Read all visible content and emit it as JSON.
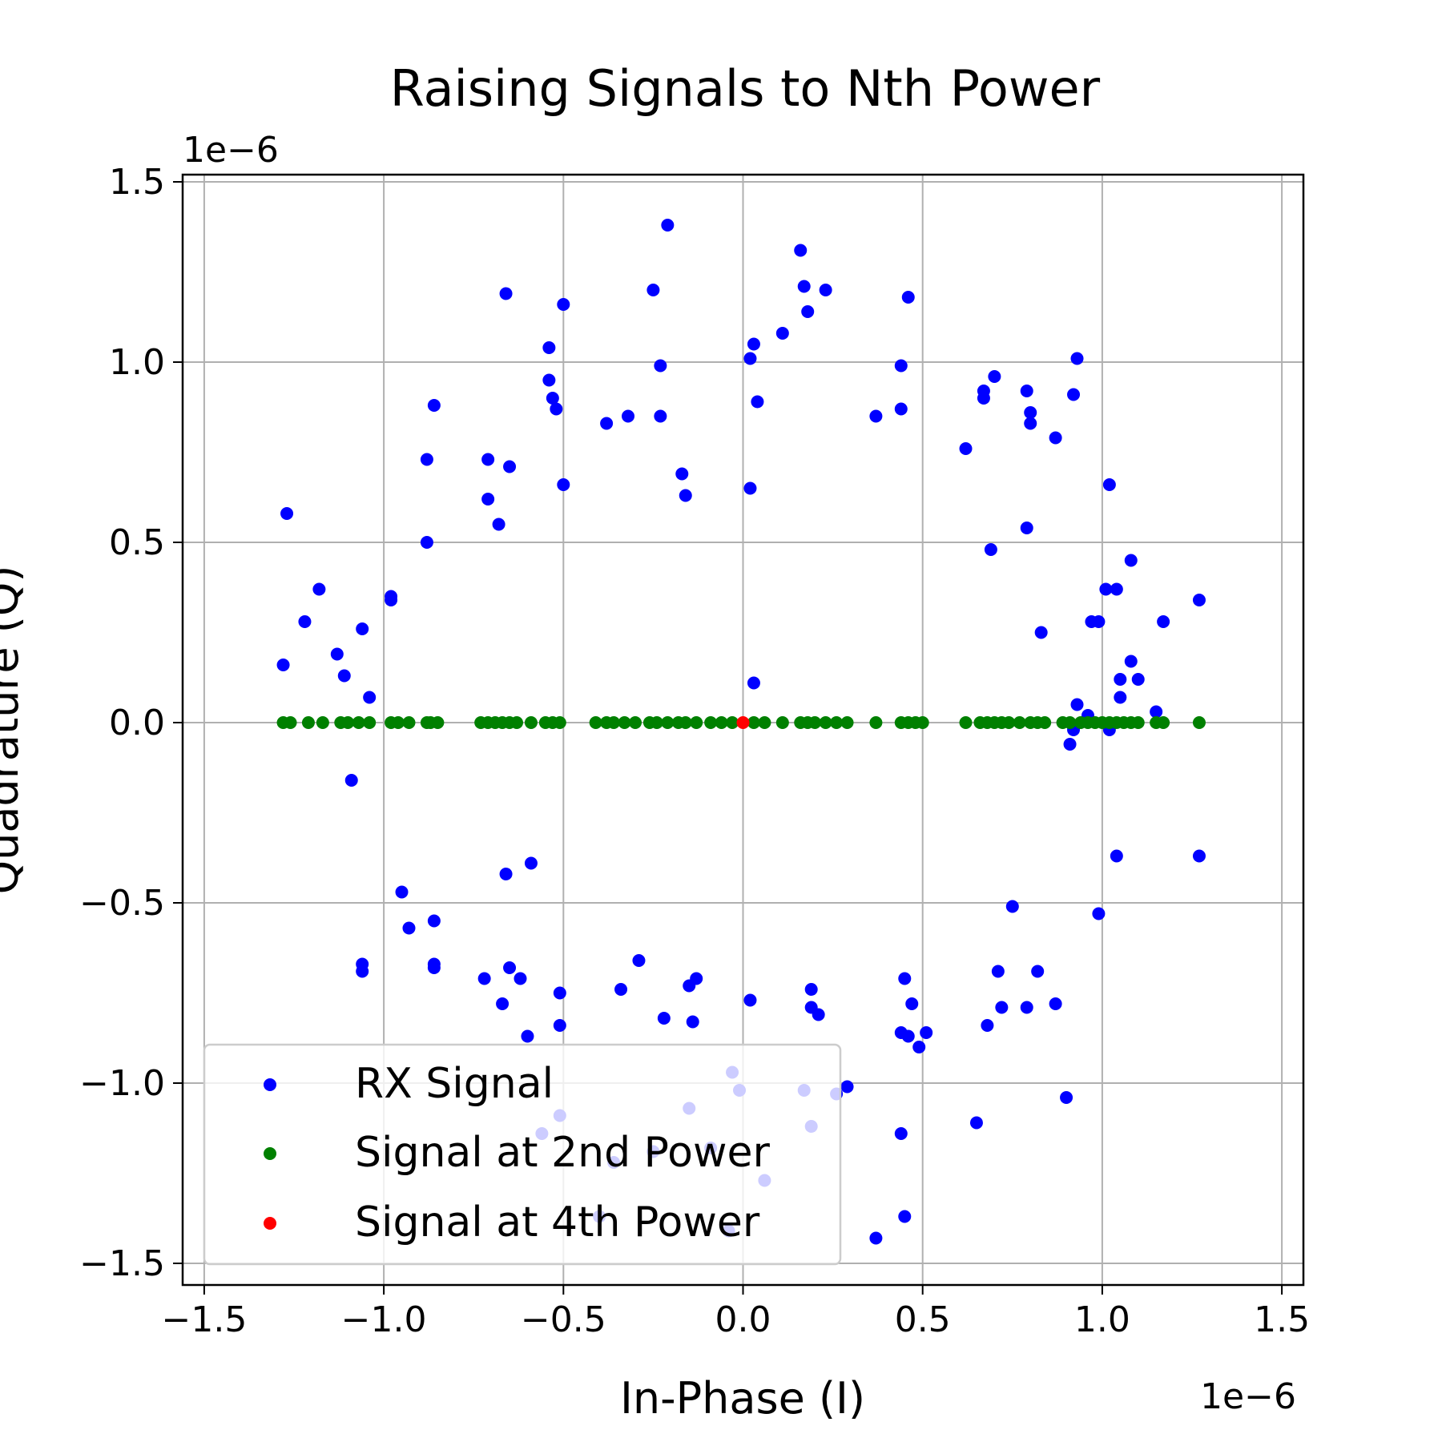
{
  "chart_data": {
    "type": "scatter",
    "title": "Raising Signals to Nth Power",
    "xlabel": "In-Phase (I)",
    "ylabel": "Quadrature (Q)",
    "x_offset_text": "1e−6",
    "y_offset_text": "1e−6",
    "xlim": [
      -1.56,
      1.56
    ],
    "ylim": [
      -1.56,
      1.52
    ],
    "x_ticks": [
      -1.5,
      -1.0,
      -0.5,
      0.0,
      0.5,
      1.0,
      1.5
    ],
    "y_ticks": [
      -1.5,
      -1.0,
      -0.5,
      0.0,
      0.5,
      1.0,
      1.5
    ],
    "x_tick_labels": [
      "−1.5",
      "−1.0",
      "−0.5",
      "0.0",
      "0.5",
      "1.0",
      "1.5"
    ],
    "y_tick_labels": [
      "−1.5",
      "−1.0",
      "−0.5",
      "0.0",
      "0.5",
      "1.0",
      "1.5"
    ],
    "grid": true,
    "legend_position": "lower-left",
    "series": [
      {
        "name": "RX Signal",
        "color": "#0000ff",
        "points": [
          [
            -1.27,
            0.58
          ],
          [
            -1.28,
            0.16
          ],
          [
            -1.22,
            0.28
          ],
          [
            -1.18,
            0.37
          ],
          [
            -1.13,
            0.19
          ],
          [
            -1.11,
            0.13
          ],
          [
            -1.06,
            0.26
          ],
          [
            -1.04,
            0.07
          ],
          [
            -1.09,
            -0.16
          ],
          [
            -0.98,
            0.35
          ],
          [
            -0.98,
            0.34
          ],
          [
            -0.88,
            0.5
          ],
          [
            -0.88,
            0.73
          ],
          [
            -0.86,
            0.88
          ],
          [
            -0.71,
            0.73
          ],
          [
            -0.71,
            0.62
          ],
          [
            -0.68,
            0.55
          ],
          [
            -0.66,
            1.19
          ],
          [
            -0.65,
            0.71
          ],
          [
            -0.54,
            1.04
          ],
          [
            -0.54,
            0.95
          ],
          [
            -0.53,
            0.9
          ],
          [
            -0.52,
            0.87
          ],
          [
            -0.5,
            1.16
          ],
          [
            -0.5,
            0.66
          ],
          [
            -0.38,
            0.83
          ],
          [
            -0.32,
            0.85
          ],
          [
            -0.25,
            1.2
          ],
          [
            -0.23,
            0.99
          ],
          [
            -0.23,
            0.85
          ],
          [
            -0.21,
            1.38
          ],
          [
            -0.17,
            0.69
          ],
          [
            -0.16,
            0.63
          ],
          [
            0.02,
            0.65
          ],
          [
            0.02,
            1.01
          ],
          [
            0.03,
            1.05
          ],
          [
            0.04,
            0.89
          ],
          [
            0.03,
            0.11
          ],
          [
            0.11,
            1.08
          ],
          [
            0.16,
            1.31
          ],
          [
            0.17,
            1.21
          ],
          [
            0.18,
            1.14
          ],
          [
            0.23,
            1.2
          ],
          [
            0.37,
            0.85
          ],
          [
            0.44,
            0.87
          ],
          [
            0.44,
            0.99
          ],
          [
            0.46,
            1.18
          ],
          [
            0.62,
            0.76
          ],
          [
            0.67,
            0.92
          ],
          [
            0.67,
            0.9
          ],
          [
            0.7,
            0.96
          ],
          [
            0.69,
            0.48
          ],
          [
            0.79,
            0.92
          ],
          [
            0.8,
            0.86
          ],
          [
            0.8,
            0.83
          ],
          [
            0.83,
            0.25
          ],
          [
            0.79,
            0.54
          ],
          [
            0.87,
            0.79
          ],
          [
            0.92,
            0.91
          ],
          [
            0.93,
            1.01
          ],
          [
            1.02,
            0.66
          ],
          [
            1.01,
            0.37
          ],
          [
            1.04,
            0.37
          ],
          [
            1.08,
            0.45
          ],
          [
            0.97,
            0.28
          ],
          [
            0.99,
            0.28
          ],
          [
            1.08,
            0.17
          ],
          [
            1.1,
            0.12
          ],
          [
            1.05,
            0.12
          ],
          [
            1.05,
            0.07
          ],
          [
            1.17,
            0.28
          ],
          [
            1.27,
            0.34
          ],
          [
            0.93,
            0.05
          ],
          [
            0.96,
            0.02
          ],
          [
            1.15,
            0.03
          ],
          [
            0.92,
            -0.02
          ],
          [
            0.91,
            -0.06
          ],
          [
            1.02,
            -0.02
          ],
          [
            -0.95,
            -0.47
          ],
          [
            -0.93,
            -0.57
          ],
          [
            -0.86,
            -0.55
          ],
          [
            -0.86,
            -0.67
          ],
          [
            -0.86,
            -0.68
          ],
          [
            -1.06,
            -0.67
          ],
          [
            -1.06,
            -0.69
          ],
          [
            -0.66,
            -0.42
          ],
          [
            -0.59,
            -0.39
          ],
          [
            -0.72,
            -0.71
          ],
          [
            -0.65,
            -0.68
          ],
          [
            -0.62,
            -0.71
          ],
          [
            -0.67,
            -0.78
          ],
          [
            -0.6,
            -0.87
          ],
          [
            -0.51,
            -0.75
          ],
          [
            -0.51,
            -0.84
          ],
          [
            -0.34,
            -0.74
          ],
          [
            -0.29,
            -0.66
          ],
          [
            -0.22,
            -0.82
          ],
          [
            -0.15,
            -0.73
          ],
          [
            -0.13,
            -0.71
          ],
          [
            -0.14,
            -0.83
          ],
          [
            0.02,
            -0.77
          ],
          [
            0.19,
            -0.74
          ],
          [
            0.19,
            -0.79
          ],
          [
            0.21,
            -0.81
          ],
          [
            0.29,
            -1.01
          ],
          [
            0.37,
            -1.43
          ],
          [
            0.44,
            -0.86
          ],
          [
            0.45,
            -0.71
          ],
          [
            0.47,
            -0.78
          ],
          [
            0.46,
            -0.87
          ],
          [
            0.49,
            -0.9
          ],
          [
            0.51,
            -0.86
          ],
          [
            0.44,
            -1.14
          ],
          [
            0.45,
            -1.37
          ],
          [
            0.65,
            -1.11
          ],
          [
            0.68,
            -0.84
          ],
          [
            0.71,
            -0.69
          ],
          [
            0.72,
            -0.79
          ],
          [
            0.75,
            -0.51
          ],
          [
            0.79,
            -0.79
          ],
          [
            0.82,
            -0.69
          ],
          [
            0.87,
            -0.78
          ],
          [
            0.9,
            -1.04
          ],
          [
            0.99,
            -0.53
          ],
          [
            1.04,
            -0.37
          ],
          [
            1.27,
            -0.37
          ],
          [
            -0.56,
            -1.14
          ],
          [
            -0.51,
            -1.09
          ],
          [
            -0.36,
            -1.22
          ],
          [
            -0.25,
            -1.19
          ],
          [
            -0.15,
            -1.07
          ],
          [
            -0.09,
            -1.18
          ],
          [
            -0.03,
            -0.97
          ],
          [
            -0.01,
            -1.02
          ],
          [
            0.06,
            -1.27
          ],
          [
            0.17,
            -1.02
          ],
          [
            0.19,
            -1.12
          ],
          [
            0.26,
            -1.03
          ],
          [
            -0.04,
            -1.41
          ],
          [
            -0.4,
            -1.37
          ]
        ]
      },
      {
        "name": "Signal at 2nd Power",
        "color": "#008000",
        "points": [
          [
            -1.28,
            0
          ],
          [
            -1.26,
            0
          ],
          [
            -1.21,
            0
          ],
          [
            -1.17,
            0
          ],
          [
            -1.12,
            0
          ],
          [
            -1.1,
            0
          ],
          [
            -1.07,
            0
          ],
          [
            -1.04,
            0
          ],
          [
            -0.98,
            0
          ],
          [
            -0.96,
            0
          ],
          [
            -0.93,
            0
          ],
          [
            -0.88,
            0
          ],
          [
            -0.87,
            0
          ],
          [
            -0.85,
            0
          ],
          [
            -0.73,
            0
          ],
          [
            -0.71,
            0
          ],
          [
            -0.69,
            0
          ],
          [
            -0.67,
            0
          ],
          [
            -0.65,
            0
          ],
          [
            -0.63,
            0
          ],
          [
            -0.59,
            0
          ],
          [
            -0.55,
            0
          ],
          [
            -0.53,
            0
          ],
          [
            -0.51,
            0
          ],
          [
            -0.41,
            0
          ],
          [
            -0.38,
            0
          ],
          [
            -0.36,
            0
          ],
          [
            -0.33,
            0
          ],
          [
            -0.3,
            0
          ],
          [
            -0.26,
            0
          ],
          [
            -0.24,
            0
          ],
          [
            -0.21,
            0
          ],
          [
            -0.18,
            0
          ],
          [
            -0.16,
            0
          ],
          [
            -0.13,
            0
          ],
          [
            -0.09,
            0
          ],
          [
            -0.06,
            0
          ],
          [
            -0.03,
            0
          ],
          [
            0.03,
            0
          ],
          [
            0.06,
            0
          ],
          [
            0.11,
            0
          ],
          [
            0.16,
            0
          ],
          [
            0.18,
            0
          ],
          [
            0.2,
            0
          ],
          [
            0.23,
            0
          ],
          [
            0.26,
            0
          ],
          [
            0.29,
            0
          ],
          [
            0.37,
            0
          ],
          [
            0.44,
            0
          ],
          [
            0.46,
            0
          ],
          [
            0.48,
            0
          ],
          [
            0.5,
            0
          ],
          [
            0.62,
            0
          ],
          [
            0.66,
            0
          ],
          [
            0.68,
            0
          ],
          [
            0.7,
            0
          ],
          [
            0.72,
            0
          ],
          [
            0.74,
            0
          ],
          [
            0.77,
            0
          ],
          [
            0.8,
            0
          ],
          [
            0.82,
            0
          ],
          [
            0.84,
            0
          ],
          [
            0.89,
            0
          ],
          [
            0.91,
            0
          ],
          [
            0.94,
            0
          ],
          [
            0.96,
            0
          ],
          [
            0.98,
            0
          ],
          [
            1.0,
            0
          ],
          [
            1.02,
            0
          ],
          [
            1.04,
            0
          ],
          [
            1.06,
            0
          ],
          [
            1.08,
            0
          ],
          [
            1.1,
            0
          ],
          [
            1.15,
            0
          ],
          [
            1.17,
            0
          ],
          [
            1.27,
            0
          ]
        ]
      },
      {
        "name": "Signal at 4th Power",
        "color": "#ff0000",
        "points": [
          [
            0.0,
            0.0
          ]
        ]
      }
    ]
  }
}
